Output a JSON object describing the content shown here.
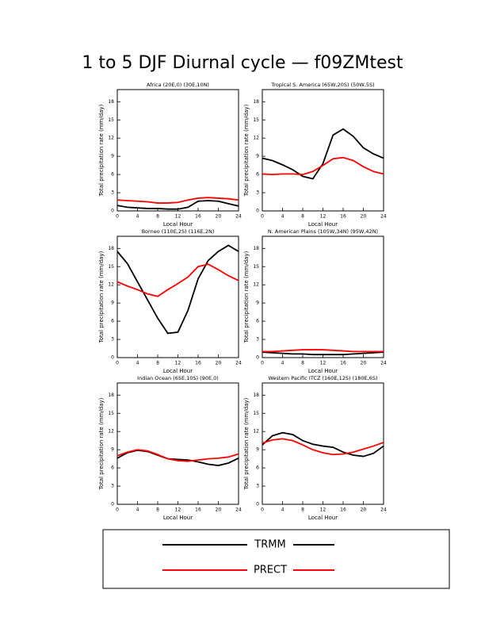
{
  "title": "1 to 5 DJF Diurnal cycle — f09ZMtest",
  "chart_data": [
    {
      "type": "line",
      "title": "Africa (20E,0) (30E,10N)",
      "x_label": "Local Hour",
      "y_label": "Total precipitation rate (mm/day)",
      "x": [
        0,
        2,
        4,
        6,
        8,
        10,
        12,
        14,
        16,
        18,
        20,
        22,
        24
      ],
      "xlim": [
        0,
        24
      ],
      "xticks": [
        0,
        4,
        8,
        12,
        16,
        20,
        24
      ],
      "ylim": [
        0,
        20
      ],
      "yticks": [
        0,
        3,
        6,
        9,
        12,
        15,
        18
      ],
      "series": [
        {
          "name": "TRMM",
          "color": "#000000",
          "values": [
            0.9,
            0.6,
            0.5,
            0.4,
            0.4,
            0.3,
            0.3,
            0.6,
            1.6,
            1.7,
            1.6,
            1.2,
            0.8
          ]
        },
        {
          "name": "PRECT",
          "color": "#ff0000",
          "values": [
            1.8,
            1.7,
            1.6,
            1.5,
            1.3,
            1.3,
            1.4,
            1.8,
            2.1,
            2.2,
            2.1,
            2.0,
            1.8
          ]
        }
      ]
    },
    {
      "type": "line",
      "title": "Tropical S. America (65W,20S) (50W,5S)",
      "x_label": "Local Hour",
      "y_label": "Total precipitation rate (mm/day)",
      "x": [
        0,
        2,
        4,
        6,
        8,
        10,
        12,
        14,
        16,
        18,
        20,
        22,
        24
      ],
      "xlim": [
        0,
        24
      ],
      "xticks": [
        0,
        4,
        8,
        12,
        16,
        20,
        24
      ],
      "ylim": [
        0,
        20
      ],
      "yticks": [
        0,
        3,
        6,
        9,
        12,
        15,
        18
      ],
      "series": [
        {
          "name": "TRMM",
          "color": "#000000",
          "values": [
            8.7,
            8.3,
            7.6,
            6.8,
            5.7,
            5.3,
            7.8,
            12.5,
            13.5,
            12.3,
            10.4,
            9.4,
            8.7
          ]
        },
        {
          "name": "PRECT",
          "color": "#ff0000",
          "values": [
            6.1,
            6.0,
            6.1,
            6.1,
            6.0,
            6.5,
            7.5,
            8.6,
            8.8,
            8.3,
            7.3,
            6.5,
            6.1
          ]
        }
      ]
    },
    {
      "type": "line",
      "title": "Borneo (110E,2S) (116E,2N)",
      "x_label": "Local Hour",
      "y_label": "Total precipitation rate (mm/day)",
      "x": [
        0,
        2,
        4,
        6,
        8,
        10,
        12,
        14,
        16,
        18,
        20,
        22,
        24
      ],
      "xlim": [
        0,
        24
      ],
      "xticks": [
        0,
        4,
        8,
        12,
        16,
        20,
        24
      ],
      "ylim": [
        0,
        20
      ],
      "yticks": [
        0,
        3,
        6,
        9,
        12,
        15,
        18
      ],
      "series": [
        {
          "name": "TRMM",
          "color": "#000000",
          "values": [
            17.5,
            15.5,
            12.5,
            9.5,
            6.5,
            4.0,
            4.2,
            7.8,
            13.0,
            16.0,
            17.5,
            18.5,
            17.5
          ]
        },
        {
          "name": "PRECT",
          "color": "#ff0000",
          "values": [
            12.5,
            11.8,
            11.2,
            10.5,
            10.1,
            11.2,
            12.2,
            13.3,
            15.0,
            15.4,
            14.5,
            13.5,
            12.7
          ]
        }
      ]
    },
    {
      "type": "line",
      "title": "N. American Plains (105W,34N) (95W,42N)",
      "x_label": "Local Hour",
      "y_label": "Total precipitation rate (mm/day)",
      "x": [
        0,
        2,
        4,
        6,
        8,
        10,
        12,
        14,
        16,
        18,
        20,
        22,
        24
      ],
      "xlim": [
        0,
        24
      ],
      "xticks": [
        0,
        4,
        8,
        12,
        16,
        20,
        24
      ],
      "ylim": [
        0,
        20
      ],
      "yticks": [
        0,
        3,
        6,
        9,
        12,
        15,
        18
      ],
      "series": [
        {
          "name": "TRMM",
          "color": "#000000",
          "values": [
            0.9,
            0.8,
            0.7,
            0.6,
            0.6,
            0.5,
            0.5,
            0.5,
            0.5,
            0.6,
            0.7,
            0.8,
            0.9
          ]
        },
        {
          "name": "PRECT",
          "color": "#ff0000",
          "values": [
            1.0,
            1.0,
            1.1,
            1.2,
            1.3,
            1.3,
            1.3,
            1.2,
            1.1,
            1.0,
            1.0,
            1.0,
            1.0
          ]
        }
      ]
    },
    {
      "type": "line",
      "title": "Indian Ocean (65E,10S) (90E,0)",
      "x_label": "Local Hour",
      "y_label": "Total precipitation rate (mm/day)",
      "x": [
        0,
        2,
        4,
        6,
        8,
        10,
        12,
        14,
        16,
        18,
        20,
        22,
        24
      ],
      "xlim": [
        0,
        24
      ],
      "xticks": [
        0,
        4,
        8,
        12,
        16,
        20,
        24
      ],
      "ylim": [
        0,
        20
      ],
      "yticks": [
        0,
        3,
        6,
        9,
        12,
        15,
        18
      ],
      "series": [
        {
          "name": "TRMM",
          "color": "#000000",
          "values": [
            7.6,
            8.5,
            8.9,
            8.7,
            8.1,
            7.5,
            7.4,
            7.3,
            7.0,
            6.6,
            6.4,
            6.8,
            7.6
          ]
        },
        {
          "name": "PRECT",
          "color": "#ff0000",
          "values": [
            8.0,
            8.6,
            9.0,
            8.8,
            8.2,
            7.5,
            7.2,
            7.1,
            7.3,
            7.5,
            7.6,
            7.8,
            8.3
          ]
        }
      ]
    },
    {
      "type": "line",
      "title": "Western Pacific ITCZ (160E,12S) (180E,6S)",
      "x_label": "Local Hour",
      "y_label": "Total precipitation rate (mm/day)",
      "x": [
        0,
        2,
        4,
        6,
        8,
        10,
        12,
        14,
        16,
        18,
        20,
        22,
        24
      ],
      "xlim": [
        0,
        24
      ],
      "xticks": [
        0,
        4,
        8,
        12,
        16,
        20,
        24
      ],
      "ylim": [
        0,
        20
      ],
      "yticks": [
        0,
        3,
        6,
        9,
        12,
        15,
        18
      ],
      "series": [
        {
          "name": "TRMM",
          "color": "#000000",
          "values": [
            9.8,
            11.3,
            11.8,
            11.5,
            10.5,
            9.9,
            9.6,
            9.4,
            8.6,
            8.1,
            7.9,
            8.4,
            9.6
          ]
        },
        {
          "name": "PRECT",
          "color": "#ff0000",
          "values": [
            10.1,
            10.6,
            10.8,
            10.5,
            9.8,
            9.0,
            8.5,
            8.2,
            8.3,
            8.6,
            9.1,
            9.6,
            10.2
          ]
        }
      ]
    }
  ]
}
